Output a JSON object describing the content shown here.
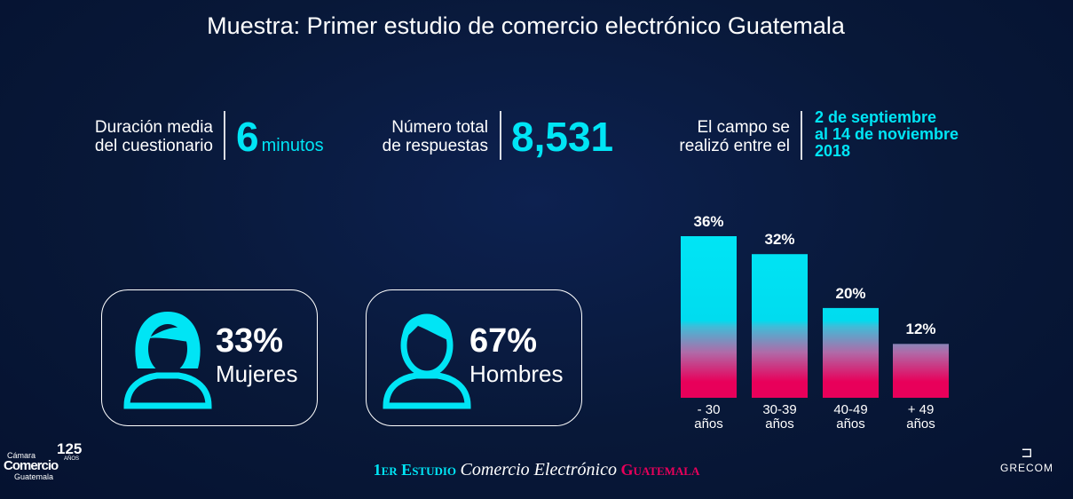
{
  "title": "Muestra: Primer estudio de comercio electrónico Guatemala",
  "stats": {
    "duration": {
      "label1": "Duración media",
      "label2": "del cuestionario",
      "value": "6",
      "unit": "minutos"
    },
    "responses": {
      "label1": "Número total",
      "label2": "de respuestas",
      "value": "8,531"
    },
    "field": {
      "label1": "El campo se",
      "label2": "realizó entre el",
      "line1": "2 de septiembre",
      "line2": "al 14 de noviembre",
      "line3": "2018"
    }
  },
  "gender": [
    {
      "pct": "33%",
      "label": "Mujeres"
    },
    {
      "pct": "67%",
      "label": "Hombres"
    }
  ],
  "chart_data": {
    "type": "bar",
    "categories": [
      "- 30 años",
      "30-39 años",
      "40-49 años",
      "+ 49 años"
    ],
    "tick_lines": [
      [
        "- 30",
        "años"
      ],
      [
        "30-39",
        "años"
      ],
      [
        "40-49",
        "años"
      ],
      [
        "+ 49",
        "años"
      ]
    ],
    "values": [
      36,
      32,
      20,
      12
    ],
    "labels": [
      "36%",
      "32%",
      "20%",
      "12%"
    ],
    "ylim": [
      0,
      40
    ],
    "colors": {
      "top": "#00e5f5",
      "bottom": "#e8005a"
    }
  },
  "footer": {
    "part1": "1er Estudio",
    "part2": "Comercio Electrónico",
    "part3": "Guatemala"
  },
  "logos": {
    "left": {
      "line1": "Cámara",
      "line2": "Comercio",
      "line3": "Guatemala",
      "years": "125",
      "anos": "AÑOS"
    },
    "right": "GRECOM"
  }
}
